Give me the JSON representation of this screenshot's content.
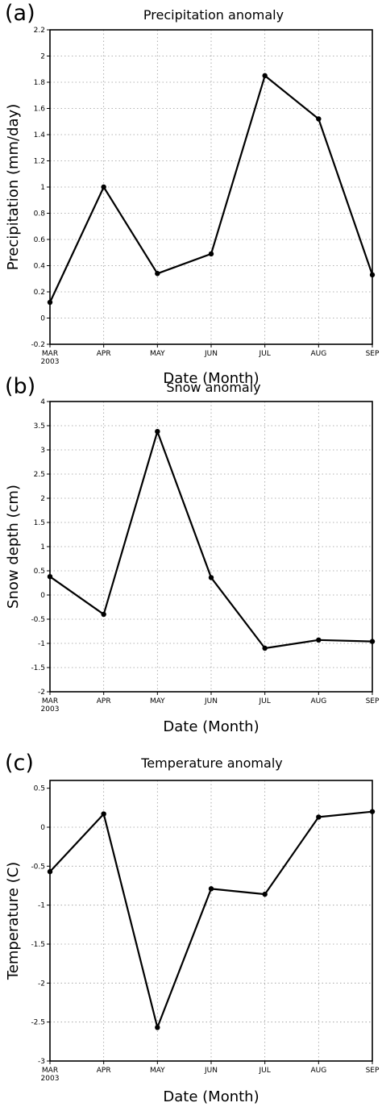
{
  "chart_data": [
    {
      "type": "line",
      "panel_letter": "(a)",
      "title": "Precipitation anomaly",
      "xlabel": "Date (Month)",
      "ylabel": "Precipitation (mm/day)",
      "categories": [
        "MAR",
        "APR",
        "MAY",
        "JUN",
        "JUL",
        "AUG",
        "SEP"
      ],
      "first_category_year": "2003",
      "values": [
        0.12,
        1.0,
        0.34,
        0.49,
        1.85,
        1.52,
        0.33
      ],
      "ylim": [
        -0.2,
        2.2
      ],
      "yticks": [
        -0.2,
        0,
        0.2,
        0.4,
        0.6,
        0.8,
        1,
        1.2,
        1.4,
        1.6,
        1.8,
        2,
        2.2
      ],
      "ytick_labels": [
        "-0.2",
        "0",
        "0.2",
        "0.4",
        "0.6",
        "0.8",
        "1",
        "1.2",
        "1.4",
        "1.6",
        "1.8",
        "2",
        "2.2"
      ],
      "grid": true,
      "line_color": "#000000"
    },
    {
      "type": "line",
      "panel_letter": "(b)",
      "title": "Snow anomaly",
      "xlabel": "Date (Month)",
      "ylabel": "Snow depth (cm)",
      "categories": [
        "MAR",
        "APR",
        "MAY",
        "JUN",
        "JUL",
        "AUG",
        "SEP"
      ],
      "first_category_year": "2003",
      "values": [
        0.38,
        -0.4,
        3.38,
        0.36,
        -1.1,
        -0.93,
        -0.96
      ],
      "ylim": [
        -2,
        4
      ],
      "yticks": [
        -2,
        -1.5,
        -1,
        -0.5,
        0,
        0.5,
        1,
        1.5,
        2,
        2.5,
        3,
        3.5,
        4
      ],
      "ytick_labels": [
        "-2",
        "-1.5",
        "-1",
        "-0.5",
        "0",
        "0.5",
        "1",
        "1.5",
        "2",
        "2.5",
        "3",
        "3.5",
        "4"
      ],
      "grid": true,
      "line_color": "#000000"
    },
    {
      "type": "line",
      "panel_letter": "(c)",
      "title": "Temperature anomaly",
      "xlabel": "Date (Month)",
      "ylabel": "Temperature (C)",
      "categories": [
        "MAR",
        "APR",
        "MAY",
        "JUN",
        "JUL",
        "AUG",
        "SEP"
      ],
      "first_category_year": "2003",
      "values": [
        -0.57,
        0.17,
        -2.57,
        -0.79,
        -0.86,
        0.13,
        0.2
      ],
      "ylim": [
        -3,
        0.6
      ],
      "yticks": [
        -3,
        -2.5,
        -2,
        -1.5,
        -1,
        -0.5,
        0,
        0.5
      ],
      "ytick_labels": [
        "-3",
        "-2.5",
        "-2",
        "-1.5",
        "-1",
        "-0.5",
        "0",
        "0.5"
      ],
      "grid": true,
      "line_color": "#000000"
    }
  ]
}
